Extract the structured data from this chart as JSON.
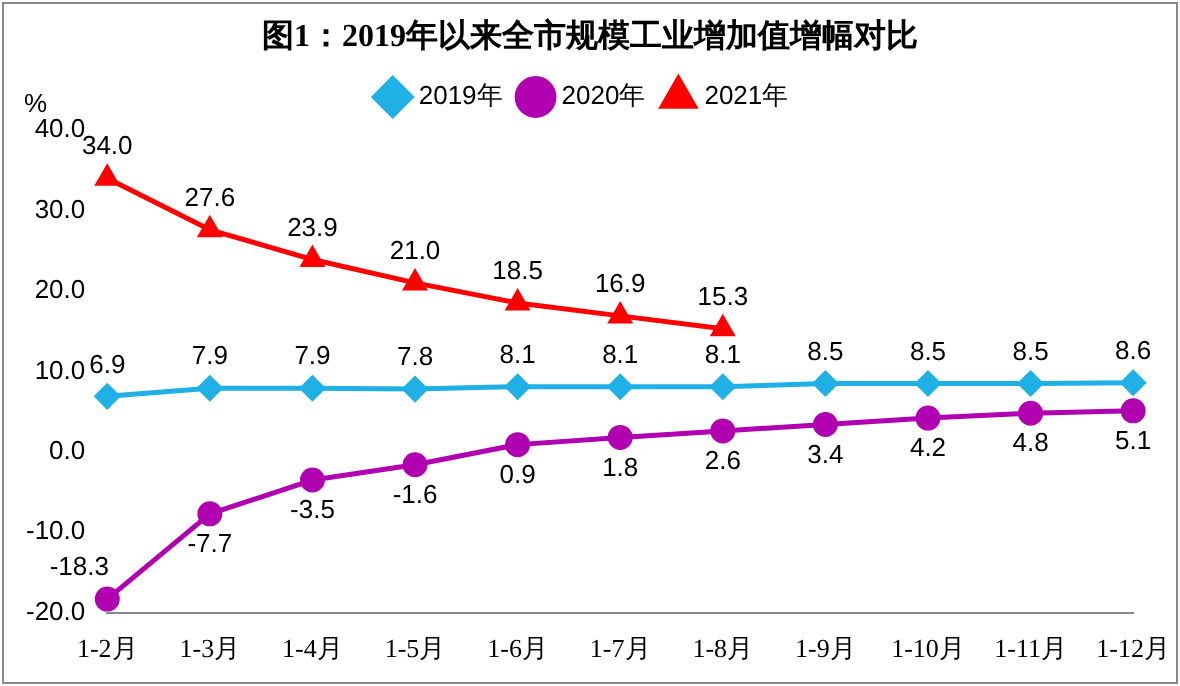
{
  "chart_data": {
    "type": "line",
    "title": "图1：2019年以来全市规模工业增加值增幅对比",
    "ylabel": "%",
    "categories": [
      "1-2月",
      "1-3月",
      "1-4月",
      "1-5月",
      "1-6月",
      "1-7月",
      "1-8月",
      "1-9月",
      "1-10月",
      "1-11月",
      "1-12月"
    ],
    "series": [
      {
        "name": "2019年",
        "color": "#1fb0e6",
        "marker": "diamond",
        "values": [
          6.9,
          7.9,
          7.9,
          7.8,
          8.1,
          8.1,
          8.1,
          8.5,
          8.5,
          8.5,
          8.6
        ],
        "value_labels": [
          "6.9",
          "7.9",
          "7.9",
          "7.8",
          "8.1",
          "8.1",
          "8.1",
          "8.5",
          "8.5",
          "8.5",
          "8.6"
        ]
      },
      {
        "name": "2020年",
        "color": "#b000b0",
        "marker": "circle",
        "values": [
          -18.3,
          -7.7,
          -3.5,
          -1.6,
          0.9,
          1.8,
          2.6,
          3.4,
          4.2,
          4.8,
          5.1
        ],
        "value_labels": [
          "-18.3",
          "-7.7",
          "-3.5",
          "-1.6",
          "0.9",
          "1.8",
          "2.6",
          "3.4",
          "4.2",
          "4.8",
          "5.1"
        ]
      },
      {
        "name": "2021年",
        "color": "#ff0000",
        "marker": "triangle",
        "values": [
          34.0,
          27.6,
          23.9,
          21.0,
          18.5,
          16.9,
          15.3,
          null,
          null,
          null,
          null
        ],
        "value_labels": [
          "34.0",
          "27.6",
          "23.9",
          "21.0",
          "18.5",
          "16.9",
          "15.3",
          null,
          null,
          null,
          null
        ]
      }
    ],
    "ylim": [
      -20,
      40
    ],
    "yticks": [
      {
        "value": -20,
        "label": "-20.0"
      },
      {
        "value": -10,
        "label": "-10.0"
      },
      {
        "value": 0,
        "label": "0.0"
      },
      {
        "value": 10,
        "label": "10.0"
      },
      {
        "value": 20,
        "label": "20.0"
      },
      {
        "value": 30,
        "label": "30.0"
      },
      {
        "value": 40,
        "label": "40.0"
      }
    ],
    "grid": false,
    "legend": "top",
    "line_style": "solid"
  }
}
